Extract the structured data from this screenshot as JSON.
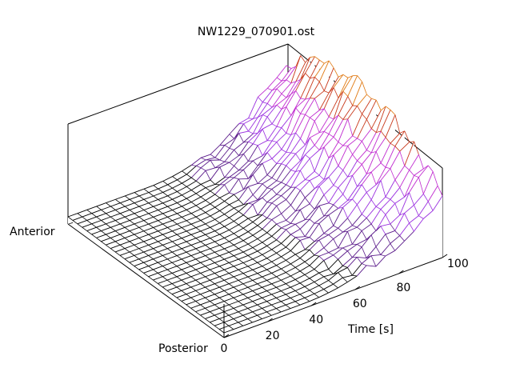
{
  "chart_data": {
    "type": "surface",
    "title": "NW1229_070901.ost",
    "xlabel": "Time [s]",
    "ylabel_top": "Anterior",
    "ylabel_bottom": "Posterior",
    "x_ticks": [
      "0",
      "20",
      "40",
      "60",
      "80",
      "100"
    ],
    "x_range": [
      0,
      100
    ],
    "profile_count": 34,
    "time_samples": 24,
    "grid": false,
    "colormap": "black-purple-orange"
  }
}
